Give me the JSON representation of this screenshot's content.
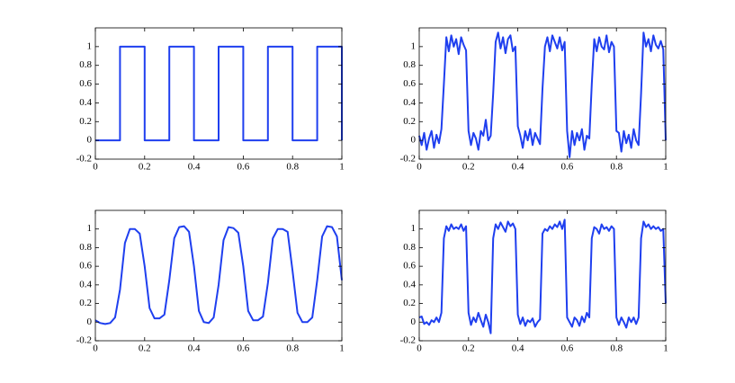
{
  "chart_data": [
    {
      "type": "line",
      "color": "#1f3fef",
      "grid": false,
      "xlim": [
        0,
        1
      ],
      "ylim": [
        -0.2,
        1.2
      ],
      "xticks": [
        0,
        0.2,
        0.4,
        0.6,
        0.8,
        1
      ],
      "yticks": [
        -0.2,
        0,
        0.2,
        0.4,
        0.6,
        0.8,
        1
      ],
      "x": [
        0,
        0.1,
        0.1,
        0.2,
        0.2,
        0.3,
        0.3,
        0.4,
        0.4,
        0.5,
        0.5,
        0.6,
        0.6,
        0.7,
        0.7,
        0.8,
        0.8,
        0.9,
        0.9,
        1,
        1
      ],
      "values": [
        0,
        0,
        1,
        1,
        0,
        0,
        1,
        1,
        0,
        0,
        1,
        1,
        0,
        0,
        1,
        1,
        0,
        0,
        1,
        1,
        0
      ]
    },
    {
      "type": "line",
      "color": "#1f3fef",
      "grid": false,
      "xlim": [
        0,
        1
      ],
      "ylim": [
        -0.2,
        1.2
      ],
      "xticks": [
        0,
        0.2,
        0.4,
        0.6,
        0.8,
        1
      ],
      "yticks": [
        -0.2,
        0,
        0.2,
        0.4,
        0.6,
        0.8,
        1
      ],
      "x": [
        0,
        0.01,
        0.02,
        0.03,
        0.04,
        0.05,
        0.06,
        0.07,
        0.08,
        0.09,
        0.1,
        0.11,
        0.12,
        0.13,
        0.14,
        0.15,
        0.16,
        0.17,
        0.18,
        0.19,
        0.2,
        0.21,
        0.22,
        0.23,
        0.24,
        0.25,
        0.26,
        0.27,
        0.28,
        0.29,
        0.3,
        0.31,
        0.32,
        0.33,
        0.34,
        0.35,
        0.36,
        0.37,
        0.38,
        0.39,
        0.4,
        0.41,
        0.42,
        0.43,
        0.44,
        0.45,
        0.46,
        0.47,
        0.48,
        0.49,
        0.5,
        0.51,
        0.52,
        0.53,
        0.54,
        0.55,
        0.56,
        0.57,
        0.58,
        0.59,
        0.6,
        0.61,
        0.62,
        0.63,
        0.64,
        0.65,
        0.66,
        0.67,
        0.68,
        0.69,
        0.7,
        0.71,
        0.72,
        0.73,
        0.74,
        0.75,
        0.76,
        0.77,
        0.78,
        0.79,
        0.8,
        0.81,
        0.82,
        0.83,
        0.84,
        0.85,
        0.86,
        0.87,
        0.88,
        0.89,
        0.9,
        0.91,
        0.92,
        0.93,
        0.94,
        0.95,
        0.96,
        0.97,
        0.98,
        0.99,
        1
      ],
      "values": [
        0.05,
        -0.05,
        0.08,
        -0.1,
        0.02,
        0.1,
        -0.08,
        0.06,
        -0.03,
        0.12,
        0.6,
        1.1,
        0.95,
        1.12,
        1.0,
        1.08,
        0.92,
        1.1,
        1.02,
        0.96,
        0.1,
        -0.05,
        0.08,
        0.02,
        -0.1,
        0.1,
        0.05,
        0.22,
        0.0,
        0.05,
        0.5,
        1.05,
        1.15,
        0.98,
        1.1,
        0.93,
        1.08,
        1.12,
        0.95,
        1.0,
        0.15,
        0.05,
        -0.08,
        0.1,
        0.0,
        0.12,
        -0.05,
        0.08,
        0.02,
        -0.04,
        0.55,
        1.0,
        1.1,
        0.95,
        1.12,
        1.05,
        0.98,
        1.1,
        0.96,
        1.05,
        0.1,
        -0.18,
        0.1,
        -0.05,
        0.08,
        0.0,
        0.12,
        -0.1,
        0.05,
        0.02,
        0.6,
        1.08,
        0.95,
        1.1,
        1.0,
        0.97,
        1.12,
        0.94,
        1.05,
        1.0,
        0.1,
        0.08,
        -0.12,
        0.1,
        -0.03,
        0.06,
        -0.08,
        0.12,
        0.0,
        -0.05,
        0.5,
        1.15,
        1.0,
        1.08,
        0.95,
        1.12,
        1.02,
        0.98,
        1.06,
        0.97,
        0.0
      ]
    },
    {
      "type": "line",
      "color": "#1f3fef",
      "grid": false,
      "xlim": [
        0,
        1
      ],
      "ylim": [
        -0.2,
        1.2
      ],
      "xticks": [
        0,
        0.2,
        0.4,
        0.6,
        0.8,
        1
      ],
      "yticks": [
        -0.2,
        0,
        0.2,
        0.4,
        0.6,
        0.8,
        1
      ],
      "x": [
        0,
        0.02,
        0.04,
        0.06,
        0.08,
        0.1,
        0.12,
        0.14,
        0.16,
        0.18,
        0.2,
        0.22,
        0.24,
        0.26,
        0.28,
        0.3,
        0.32,
        0.34,
        0.36,
        0.38,
        0.4,
        0.42,
        0.44,
        0.46,
        0.48,
        0.5,
        0.52,
        0.54,
        0.56,
        0.58,
        0.6,
        0.62,
        0.64,
        0.66,
        0.68,
        0.7,
        0.72,
        0.74,
        0.76,
        0.78,
        0.8,
        0.82,
        0.84,
        0.86,
        0.88,
        0.9,
        0.92,
        0.94,
        0.96,
        0.98,
        1
      ],
      "values": [
        0.02,
        -0.01,
        -0.02,
        -0.01,
        0.05,
        0.35,
        0.85,
        1.0,
        1.0,
        0.95,
        0.6,
        0.15,
        0.04,
        0.04,
        0.08,
        0.45,
        0.9,
        1.02,
        1.03,
        0.97,
        0.6,
        0.12,
        0.0,
        -0.01,
        0.05,
        0.4,
        0.88,
        1.02,
        1.01,
        0.96,
        0.6,
        0.12,
        0.02,
        0.02,
        0.06,
        0.42,
        0.9,
        1.0,
        1.0,
        0.97,
        0.55,
        0.1,
        0.0,
        0.0,
        0.05,
        0.45,
        0.92,
        1.03,
        1.02,
        0.92,
        0.45
      ]
    },
    {
      "type": "line",
      "color": "#1f3fef",
      "grid": false,
      "xlim": [
        0,
        1
      ],
      "ylim": [
        -0.2,
        1.2
      ],
      "xticks": [
        0,
        0.2,
        0.4,
        0.6,
        0.8,
        1
      ],
      "yticks": [
        -0.2,
        0,
        0.2,
        0.4,
        0.6,
        0.8,
        1
      ],
      "x": [
        0,
        0.01,
        0.02,
        0.03,
        0.04,
        0.05,
        0.06,
        0.07,
        0.08,
        0.09,
        0.1,
        0.11,
        0.12,
        0.13,
        0.14,
        0.15,
        0.16,
        0.17,
        0.18,
        0.19,
        0.2,
        0.21,
        0.22,
        0.23,
        0.24,
        0.25,
        0.26,
        0.27,
        0.28,
        0.29,
        0.3,
        0.31,
        0.32,
        0.33,
        0.34,
        0.35,
        0.36,
        0.37,
        0.38,
        0.39,
        0.4,
        0.41,
        0.42,
        0.43,
        0.44,
        0.45,
        0.46,
        0.47,
        0.48,
        0.49,
        0.5,
        0.51,
        0.52,
        0.53,
        0.54,
        0.55,
        0.56,
        0.57,
        0.58,
        0.59,
        0.6,
        0.61,
        0.62,
        0.63,
        0.64,
        0.65,
        0.66,
        0.67,
        0.68,
        0.69,
        0.7,
        0.71,
        0.72,
        0.73,
        0.74,
        0.75,
        0.76,
        0.77,
        0.78,
        0.79,
        0.8,
        0.81,
        0.82,
        0.83,
        0.84,
        0.85,
        0.86,
        0.87,
        0.88,
        0.89,
        0.9,
        0.91,
        0.92,
        0.93,
        0.94,
        0.95,
        0.96,
        0.97,
        0.98,
        0.99,
        1
      ],
      "values": [
        0.05,
        0.06,
        -0.02,
        0.0,
        -0.03,
        0.02,
        0.0,
        0.05,
        0.0,
        0.1,
        0.9,
        1.03,
        0.98,
        1.05,
        1.0,
        1.02,
        1.0,
        1.05,
        0.98,
        1.03,
        0.1,
        -0.03,
        0.05,
        0.0,
        0.1,
        0.02,
        -0.05,
        0.08,
        0.0,
        -0.12,
        0.9,
        1.05,
        1.0,
        1.07,
        1.02,
        0.97,
        1.08,
        1.03,
        1.06,
        1.0,
        0.08,
        -0.02,
        0.05,
        -0.04,
        0.02,
        0.0,
        0.04,
        -0.05,
        0.0,
        0.03,
        0.95,
        1.0,
        0.98,
        1.03,
        1.0,
        1.05,
        1.02,
        1.08,
        1.0,
        1.1,
        0.05,
        0.0,
        -0.05,
        0.05,
        0.02,
        -0.04,
        0.06,
        0.0,
        0.1,
        0.05,
        0.9,
        1.02,
        1.0,
        0.95,
        1.05,
        1.0,
        1.02,
        0.98,
        1.03,
        1.0,
        0.05,
        -0.03,
        0.05,
        0.0,
        -0.06,
        0.05,
        0.0,
        0.05,
        -0.02,
        0.05,
        0.9,
        1.08,
        1.02,
        1.05,
        1.0,
        1.03,
        1.0,
        1.02,
        0.98,
        1.0,
        0.2
      ]
    }
  ]
}
